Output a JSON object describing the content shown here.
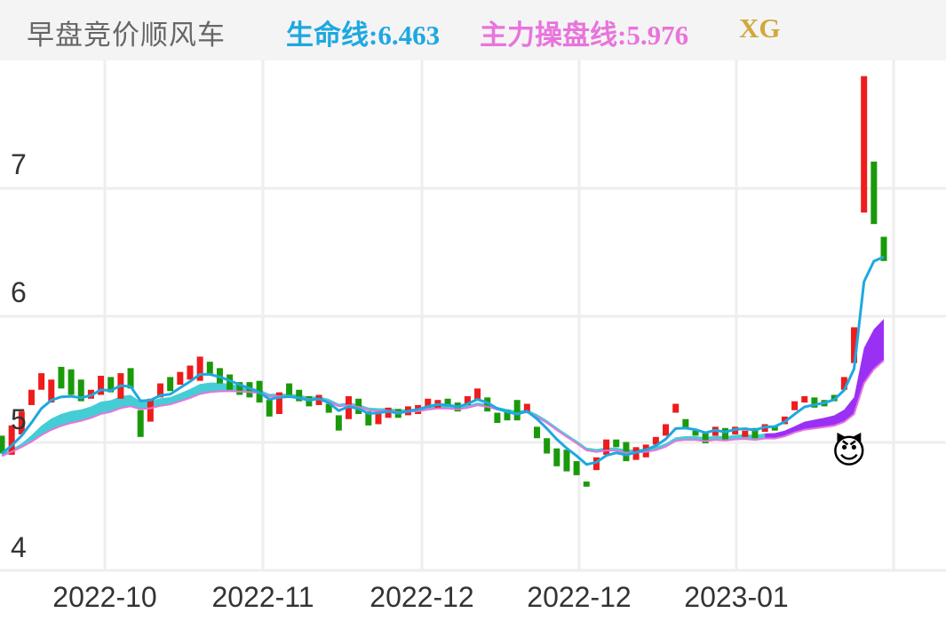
{
  "header": {
    "title": "早盘竞价顺风车",
    "indicator_life": "生命线:6.463",
    "indicator_main": "主力操盘线:5.976",
    "indicator_xg": "XG"
  },
  "colors": {
    "up": "#ee1c1c",
    "down": "#1a9a0a",
    "life_line": "#1ea8e0",
    "main_line": "#e874dc",
    "band_fill": "#44cdd4",
    "band_fill_up": "#9b30f5",
    "xg": "#cfa93a",
    "grid": "#eeeeef"
  },
  "axes": {
    "y_ticks": [
      "7",
      "6",
      "5",
      "4"
    ],
    "x_ticks": [
      "2022-10",
      "2022-11",
      "2022-12",
      "2022-12",
      "2023-01"
    ]
  },
  "marker": {
    "icon": "smiling-devil-icon",
    "glyph": "😈"
  },
  "chart_data": {
    "type": "candlestick",
    "title": "早盘竞价顺风车",
    "xlabel": "",
    "ylabel": "",
    "ylim": [
      3.85,
      7.95
    ],
    "grid": true,
    "legend": [
      "生命线:6.463",
      "主力操盘线:5.976",
      "XG"
    ],
    "x_ticks": [
      "2022-10",
      "2022-11",
      "2022-12",
      "2022-12",
      "2023-01"
    ],
    "y_ticks": [
      4,
      5,
      6,
      7
    ],
    "candles_open_close": [
      [
        5.06,
        4.92
      ],
      [
        4.91,
        5.14
      ],
      [
        5.07,
        5.25
      ],
      [
        5.3,
        5.42
      ],
      [
        5.42,
        5.55
      ],
      [
        5.32,
        5.5
      ],
      [
        5.6,
        5.43
      ],
      [
        5.58,
        5.38
      ],
      [
        5.5,
        5.33
      ],
      [
        5.35,
        5.42
      ],
      [
        5.38,
        5.53
      ],
      [
        5.52,
        5.4
      ],
      [
        5.35,
        5.55
      ],
      [
        5.59,
        5.43
      ],
      [
        5.26,
        5.05
      ],
      [
        5.17,
        5.35
      ],
      [
        5.36,
        5.47
      ],
      [
        5.52,
        5.41
      ],
      [
        5.46,
        5.56
      ],
      [
        5.5,
        5.61
      ],
      [
        5.49,
        5.68
      ],
      [
        5.64,
        5.54
      ],
      [
        5.59,
        5.47
      ],
      [
        5.54,
        5.42
      ],
      [
        5.48,
        5.38
      ],
      [
        5.48,
        5.36
      ],
      [
        5.49,
        5.32
      ],
      [
        5.34,
        5.21
      ],
      [
        5.23,
        5.4
      ],
      [
        5.47,
        5.38
      ],
      [
        5.42,
        5.33
      ],
      [
        5.37,
        5.29
      ],
      [
        5.3,
        5.38
      ],
      [
        5.31,
        5.24
      ],
      [
        5.22,
        5.1
      ],
      [
        5.19,
        5.37
      ],
      [
        5.35,
        5.23
      ],
      [
        5.25,
        5.14
      ],
      [
        5.15,
        5.25
      ],
      [
        5.2,
        5.28
      ],
      [
        5.27,
        5.2
      ],
      [
        5.22,
        5.29
      ],
      [
        5.23,
        5.3
      ],
      [
        5.28,
        5.35
      ],
      [
        5.27,
        5.34
      ],
      [
        5.35,
        5.29
      ],
      [
        5.32,
        5.25
      ],
      [
        5.3,
        5.37
      ],
      [
        5.34,
        5.43
      ],
      [
        5.36,
        5.25
      ],
      [
        5.24,
        5.16
      ],
      [
        5.26,
        5.18
      ],
      [
        5.34,
        5.18
      ],
      [
        5.25,
        5.31
      ],
      [
        5.13,
        5.04
      ],
      [
        5.04,
        4.92
      ],
      [
        4.96,
        4.82
      ],
      [
        4.95,
        4.78
      ],
      [
        4.86,
        4.75
      ],
      [
        4.7,
        4.66
      ],
      [
        4.79,
        4.89
      ],
      [
        4.91,
        5.03
      ],
      [
        5.03,
        4.97
      ],
      [
        5.01,
        4.86
      ],
      [
        4.87,
        4.97
      ],
      [
        4.89,
        4.99
      ],
      [
        4.99,
        5.05
      ],
      [
        5.06,
        5.15
      ],
      [
        5.24,
        5.31
      ],
      [
        5.19,
        5.11
      ],
      [
        5.1,
        5.06
      ],
      [
        5.08,
        5.0
      ],
      [
        5.06,
        5.13
      ],
      [
        5.12,
        5.03
      ],
      [
        5.07,
        5.13
      ],
      [
        5.05,
        5.1
      ],
      [
        5.12,
        5.04
      ],
      [
        5.09,
        5.15
      ],
      [
        5.13,
        5.1
      ],
      [
        5.15,
        5.21
      ],
      [
        5.26,
        5.33
      ],
      [
        5.32,
        5.37
      ],
      [
        5.36,
        5.28
      ],
      [
        5.34,
        5.29
      ],
      [
        5.38,
        5.33
      ],
      [
        5.42,
        5.52
      ],
      [
        5.63,
        5.91
      ],
      [
        6.81,
        7.88
      ],
      [
        7.21,
        6.72
      ],
      [
        6.62,
        6.43
      ]
    ],
    "series": [
      {
        "name": "生命线",
        "last": 6.463
      },
      {
        "name": "主力操盘线",
        "last": 5.976
      }
    ]
  }
}
